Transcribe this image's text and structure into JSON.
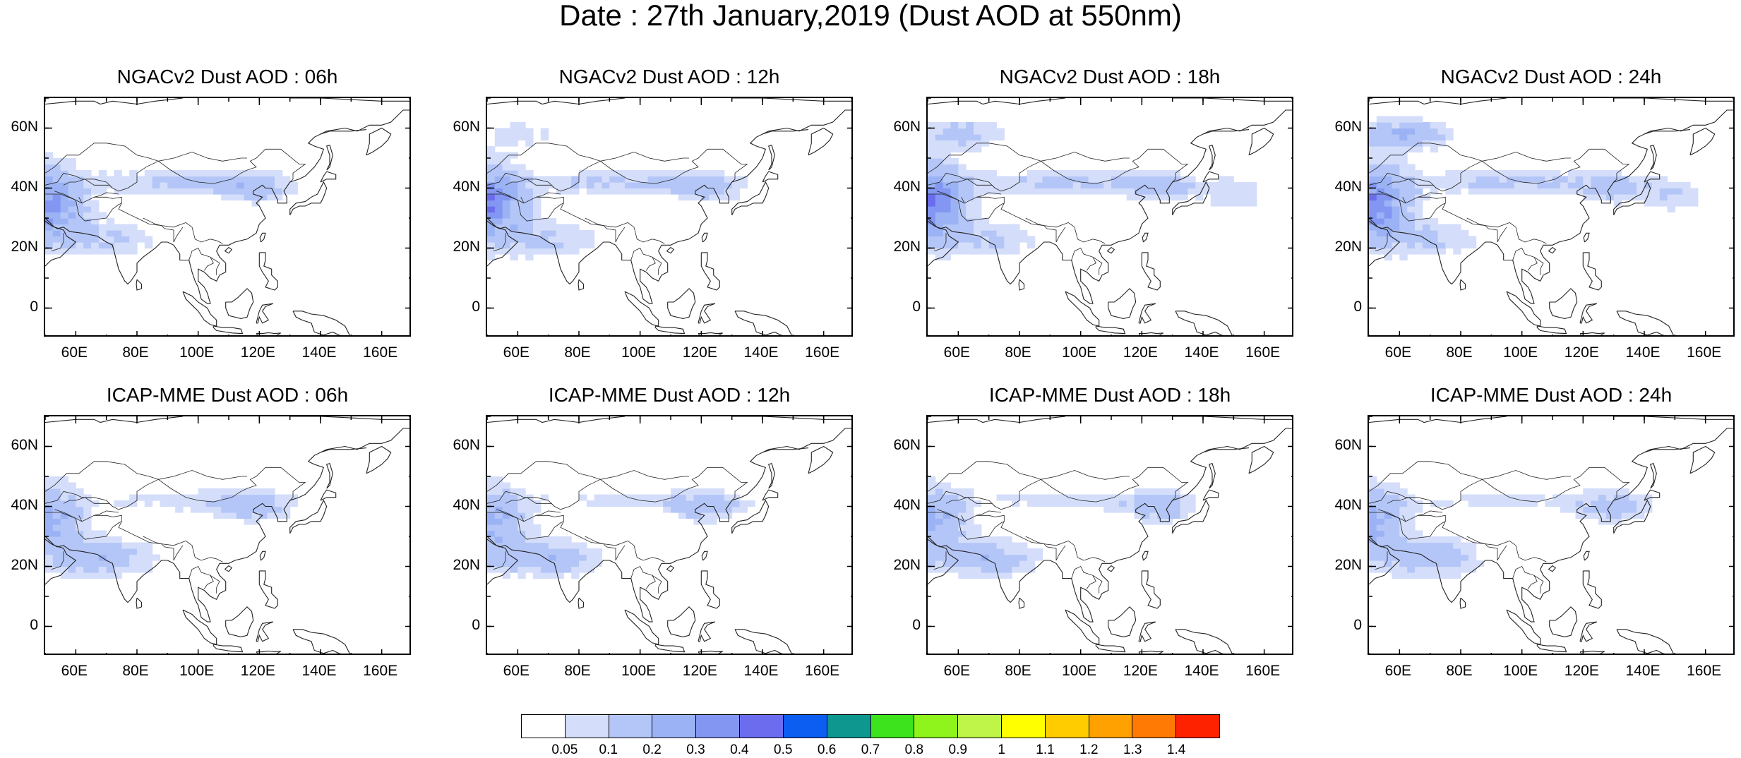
{
  "title": "Date : 27th January,2019 (Dust AOD at 550nm)",
  "panels": [
    {
      "title": "NGACv2 Dust AOD : 06h",
      "model": "NGACv2",
      "hour": "06h"
    },
    {
      "title": "NGACv2 Dust AOD : 12h",
      "model": "NGACv2",
      "hour": "12h"
    },
    {
      "title": "NGACv2 Dust AOD : 18h",
      "model": "NGACv2",
      "hour": "18h"
    },
    {
      "title": "NGACv2 Dust AOD : 24h",
      "model": "NGACv2",
      "hour": "24h"
    },
    {
      "title": "ICAP-MME Dust AOD : 06h",
      "model": "ICAP-MME",
      "hour": "06h"
    },
    {
      "title": "ICAP-MME Dust AOD : 12h",
      "model": "ICAP-MME",
      "hour": "12h"
    },
    {
      "title": "ICAP-MME Dust AOD : 18h",
      "model": "ICAP-MME",
      "hour": "18h"
    },
    {
      "title": "ICAP-MME Dust AOD : 24h",
      "model": "ICAP-MME",
      "hour": "24h"
    }
  ],
  "map": {
    "lon_range": [
      50,
      170
    ],
    "lat_range": [
      -10,
      70
    ],
    "lat_ticks": [
      "60N",
      "40N",
      "20N",
      "0"
    ],
    "lon_ticks": [
      "60E",
      "80E",
      "100E",
      "120E",
      "140E",
      "160E"
    ]
  },
  "colorbar": {
    "labels": [
      "0.05",
      "0.1",
      "0.2",
      "0.3",
      "0.4",
      "0.5",
      "0.6",
      "0.7",
      "0.8",
      "0.9",
      "1",
      "1.1",
      "1.2",
      "1.3",
      "1.4"
    ],
    "colors": [
      "#ffffff",
      "#d4defa",
      "#b4c6f7",
      "#9bb3f5",
      "#8296f2",
      "#6b6cee",
      "#0c5df2",
      "#0d978f",
      "#3de31c",
      "#8ff41b",
      "#bff449",
      "#ffff00",
      "#ffcc00",
      "#ffa100",
      "#ff7a05",
      "#ff2200"
    ]
  }
}
